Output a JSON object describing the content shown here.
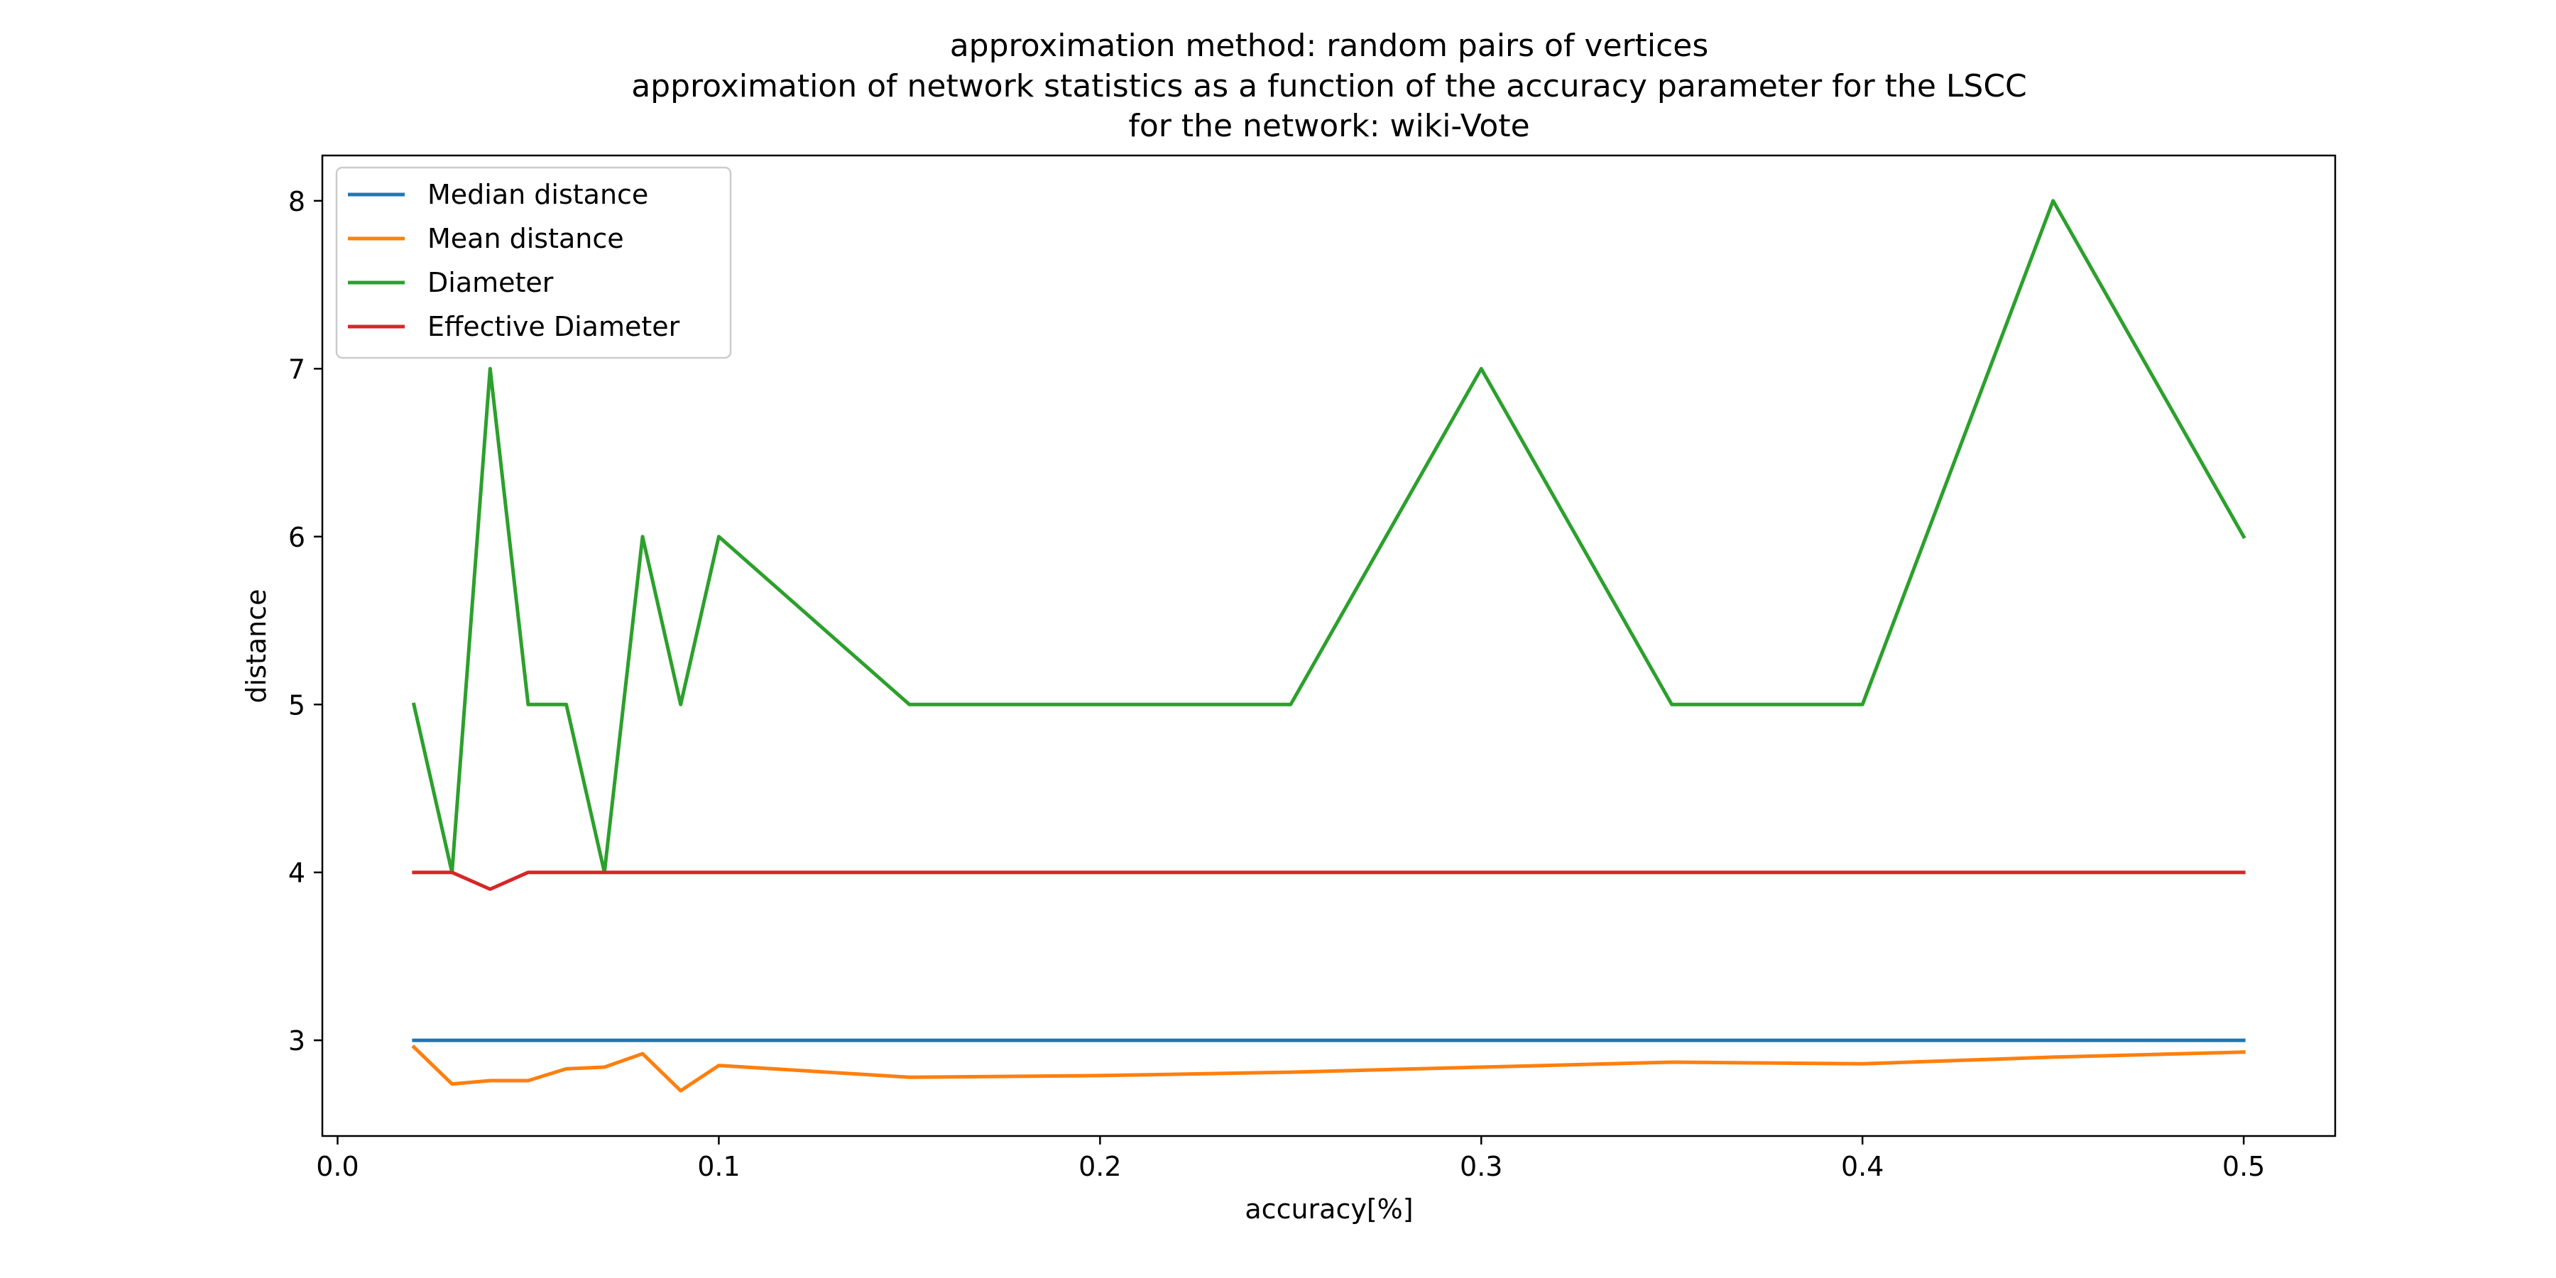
{
  "chart_data": {
    "type": "line",
    "title": [
      "approximation method: random pairs of vertices",
      "approximation of network statistics as a function of the accuracy parameter for  the LSCC",
      "for the network: wiki-Vote"
    ],
    "xlabel": "accuracy[%]",
    "ylabel": "distance",
    "xlim": [
      -0.004,
      0.524
    ],
    "ylim": [
      2.43,
      8.27
    ],
    "xticks": [
      0.0,
      0.1,
      0.2,
      0.3,
      0.4,
      0.5
    ],
    "xtick_labels": [
      "0.0",
      "0.1",
      "0.2",
      "0.3",
      "0.4",
      "0.5"
    ],
    "yticks": [
      3,
      4,
      5,
      6,
      7,
      8
    ],
    "ytick_labels": [
      "3",
      "4",
      "5",
      "6",
      "7",
      "8"
    ],
    "grid": false,
    "legend_position": "top-left",
    "x": [
      0.02,
      0.03,
      0.04,
      0.05,
      0.06,
      0.07,
      0.08,
      0.09,
      0.1,
      0.15,
      0.2,
      0.25,
      0.3,
      0.35,
      0.4,
      0.45,
      0.5
    ],
    "series": [
      {
        "name": "Median distance",
        "color": "#1f77b4",
        "values": [
          3,
          3,
          3,
          3,
          3,
          3,
          3,
          3,
          3,
          3,
          3,
          3,
          3,
          3,
          3,
          3,
          3
        ]
      },
      {
        "name": "Mean distance",
        "color": "#ff7f0e",
        "values": [
          2.96,
          2.74,
          2.76,
          2.76,
          2.83,
          2.84,
          2.92,
          2.7,
          2.85,
          2.78,
          2.79,
          2.81,
          2.84,
          2.87,
          2.86,
          2.9,
          2.93
        ]
      },
      {
        "name": "Diameter",
        "color": "#2ca02c",
        "values": [
          5,
          4,
          7,
          5,
          5,
          4,
          6,
          5,
          6,
          5,
          5,
          5,
          7,
          5,
          5,
          8,
          6
        ]
      },
      {
        "name": "Effective Diameter",
        "color": "#d62728",
        "values": [
          4,
          4,
          3.9,
          4,
          4,
          4,
          4,
          4,
          4,
          4,
          4,
          4,
          4,
          4,
          4,
          4,
          4
        ]
      }
    ]
  }
}
